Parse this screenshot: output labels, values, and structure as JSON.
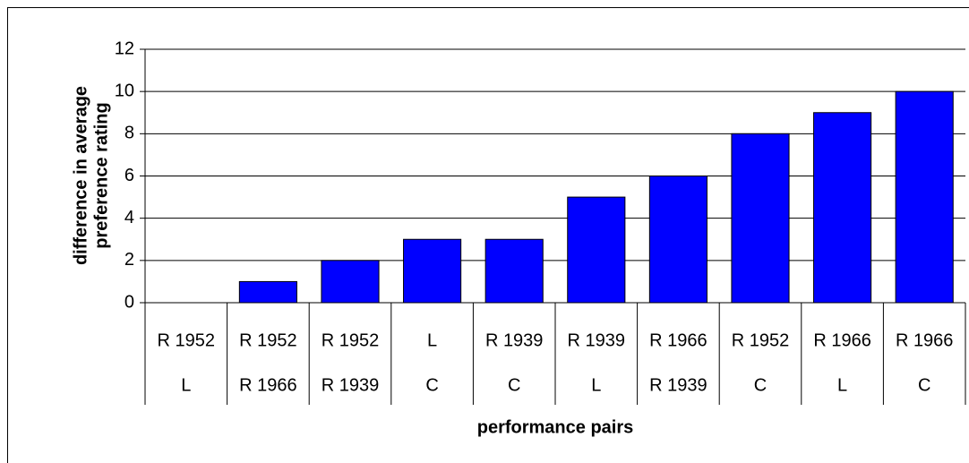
{
  "chart_data": {
    "type": "bar",
    "ylabel": [
      "difference in average",
      "preference rating"
    ],
    "xlabel": "performance pairs",
    "categories": [
      [
        "R 1952",
        "L"
      ],
      [
        "R 1952",
        "R 1966"
      ],
      [
        "R 1952",
        "R 1939"
      ],
      [
        "L",
        "C"
      ],
      [
        "R 1939",
        "C"
      ],
      [
        "R 1939",
        "L"
      ],
      [
        "R 1966",
        "R 1939"
      ],
      [
        "R 1952",
        "C"
      ],
      [
        "R 1966",
        "L"
      ],
      [
        "R 1966",
        "C"
      ]
    ],
    "values": [
      0,
      1,
      2,
      3,
      3,
      5,
      6,
      8,
      9,
      10
    ],
    "color": "#0000ff",
    "ylim": [
      0,
      12
    ],
    "yticks": [
      0,
      2,
      4,
      6,
      8,
      10,
      12
    ],
    "grid": true
  }
}
